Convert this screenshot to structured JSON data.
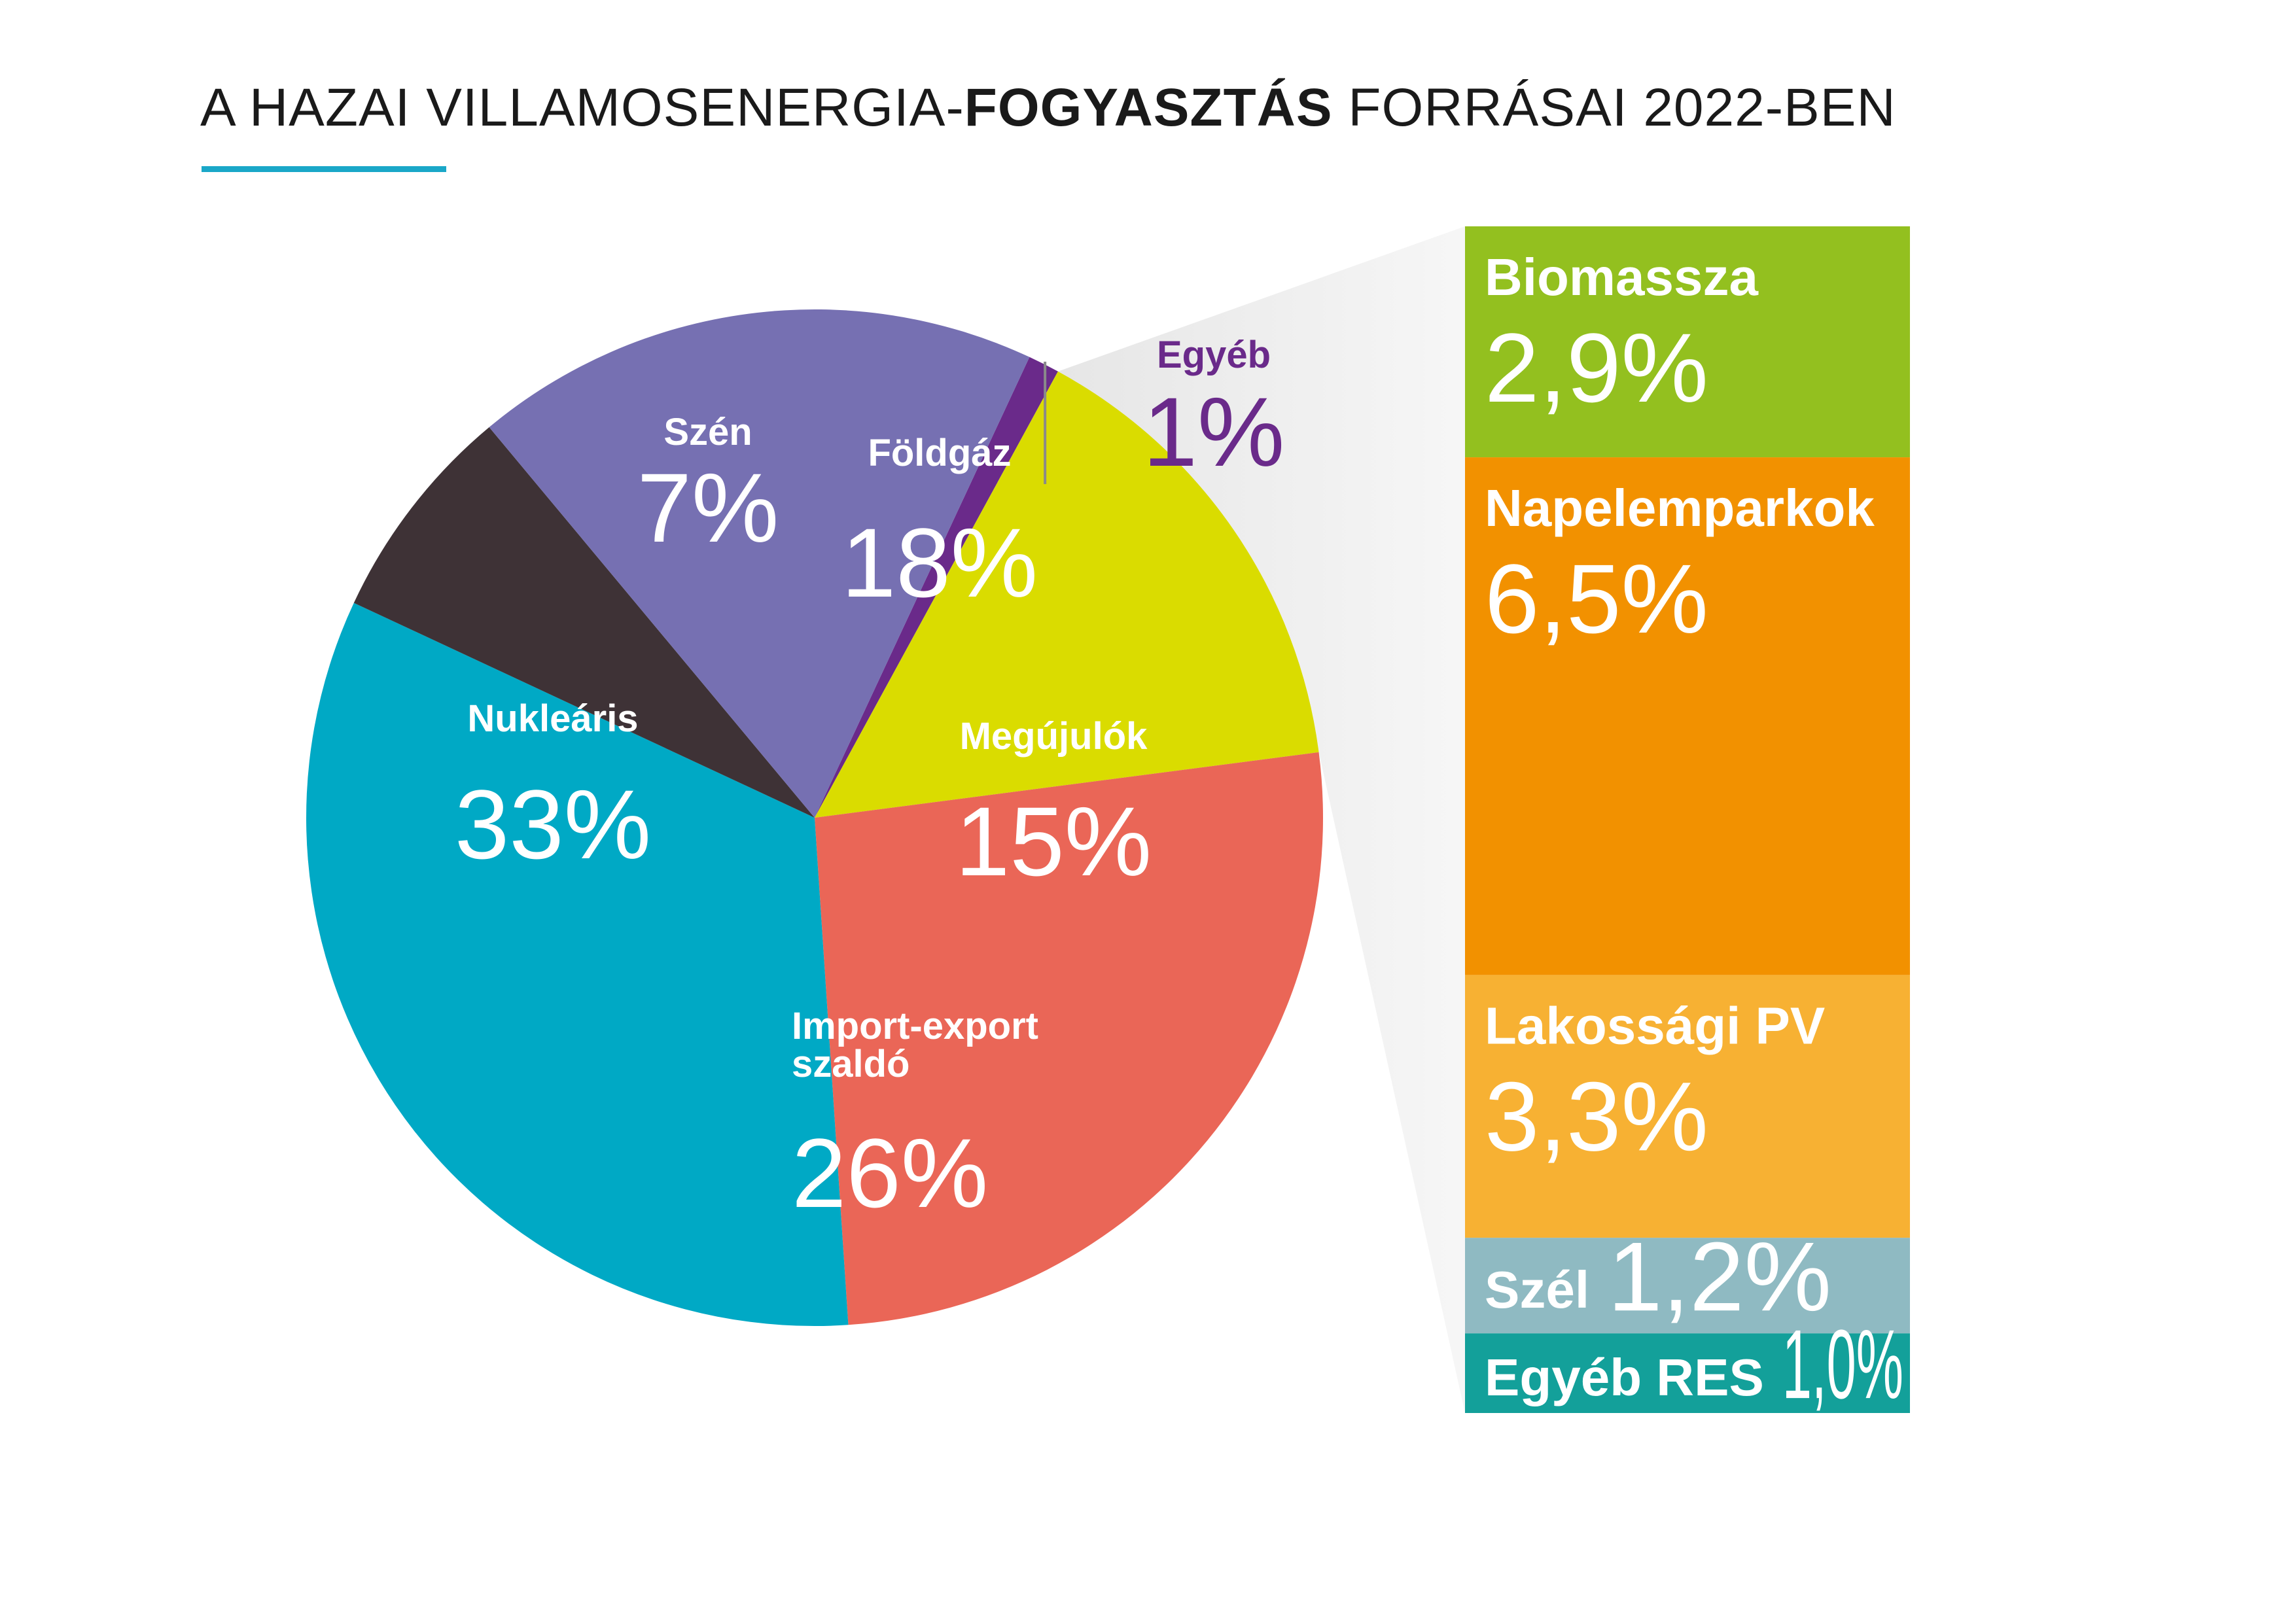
{
  "title": {
    "part1": "A HAZAI VILLAMOSENERGIA-",
    "bold": "FOGYASZTÁS",
    "part2": " FORRÁSAI 2022-BEN"
  },
  "colors": {
    "accent": "#1aa7c8",
    "fan": "#e6e6e6",
    "leader": "#8a8a8a"
  },
  "chart_data": [
    {
      "type": "pie",
      "slices": [
        {
          "name": "Egyéb",
          "label": "1%",
          "value": 1,
          "color": "#6a2a8a",
          "label_color": "#6a2a8a"
        },
        {
          "name": "Megújulók",
          "label": "15%",
          "value": 15,
          "color": "#dadc00",
          "label_color": "#ffffff"
        },
        {
          "name_lines": [
            "Import-export",
            "szaldó"
          ],
          "label": "26%",
          "value": 26,
          "color": "#ea6657",
          "label_color": "#ffffff"
        },
        {
          "name": "Nukleáris",
          "label": "33%",
          "value": 33,
          "color": "#00a9c5",
          "label_color": "#ffffff"
        },
        {
          "name": "Szén",
          "label": "7%",
          "value": 7,
          "color": "#3e3236",
          "label_color": "#ffffff"
        },
        {
          "name": "Földgáz",
          "label": "18%",
          "value": 18,
          "color": "#7670b2",
          "label_color": "#ffffff"
        }
      ]
    },
    {
      "type": "bar",
      "stacked": true,
      "breakdown_of": "Megújulók",
      "segments": [
        {
          "name": "Biomassza",
          "label": "2,9%",
          "value": 2.9,
          "color": "#93c01f",
          "value_color": "#ffffff"
        },
        {
          "name": "Napelemparkok",
          "label": "6,5%",
          "value": 6.5,
          "color": "#f29100",
          "value_color": "#ffffff"
        },
        {
          "name": "Lakossági PV",
          "label": "3,3%",
          "value": 3.3,
          "color": "#f7b133",
          "value_color": "#ffffff"
        },
        {
          "name": "Szél",
          "label": "1,2%",
          "value": 1.2,
          "color": "#8fbac2",
          "value_color": "#ffffff"
        },
        {
          "name": "Egyéb RES",
          "label": "1,0%",
          "value": 1.0,
          "color": "#13a09a",
          "value_color": "#ffffff"
        }
      ]
    }
  ]
}
